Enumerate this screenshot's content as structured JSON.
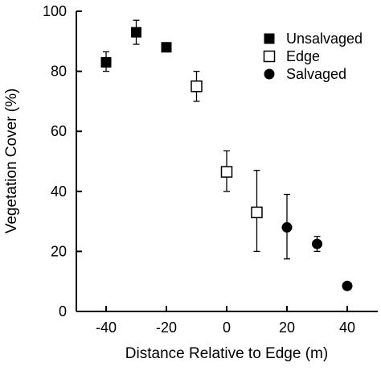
{
  "chart_data": {
    "type": "scatter",
    "title": "",
    "xlabel": "Distance Relative to Edge (m)",
    "ylabel": "Vegetation Cover (%)",
    "xlim": [
      -50,
      50
    ],
    "ylim": [
      0,
      100
    ],
    "xticks": [
      -40,
      -20,
      0,
      20,
      40
    ],
    "yticks": [
      0,
      20,
      40,
      60,
      80,
      100
    ],
    "x_tick_labels": [
      "-40",
      "-20",
      "0",
      "20",
      "40"
    ],
    "y_tick_labels": [
      "0",
      "20",
      "40",
      "60",
      "80",
      "100"
    ],
    "grid": false,
    "legend_position": "top-right",
    "series": [
      {
        "name": "Unsalvaged",
        "marker": "filled-square",
        "color": "#000000",
        "points": [
          {
            "x": -40,
            "y": 83,
            "err_low": 80,
            "err_high": 86.5
          },
          {
            "x": -30,
            "y": 93,
            "err_low": 89,
            "err_high": 97
          },
          {
            "x": -20,
            "y": 88,
            "err_low": 88,
            "err_high": 88
          }
        ]
      },
      {
        "name": "Edge",
        "marker": "open-square",
        "color": "#000000",
        "points": [
          {
            "x": -10,
            "y": 75,
            "err_low": 70,
            "err_high": 80
          },
          {
            "x": 0,
            "y": 46.5,
            "err_low": 40,
            "err_high": 53.5
          },
          {
            "x": 10,
            "y": 33,
            "err_low": 20,
            "err_high": 47
          }
        ]
      },
      {
        "name": "Salvaged",
        "marker": "filled-circle",
        "color": "#000000",
        "points": [
          {
            "x": 20,
            "y": 28,
            "err_low": 17.5,
            "err_high": 39
          },
          {
            "x": 30,
            "y": 22.5,
            "err_low": 20,
            "err_high": 25
          },
          {
            "x": 40,
            "y": 8.5,
            "err_low": 8.5,
            "err_high": 8.5
          }
        ]
      }
    ]
  }
}
